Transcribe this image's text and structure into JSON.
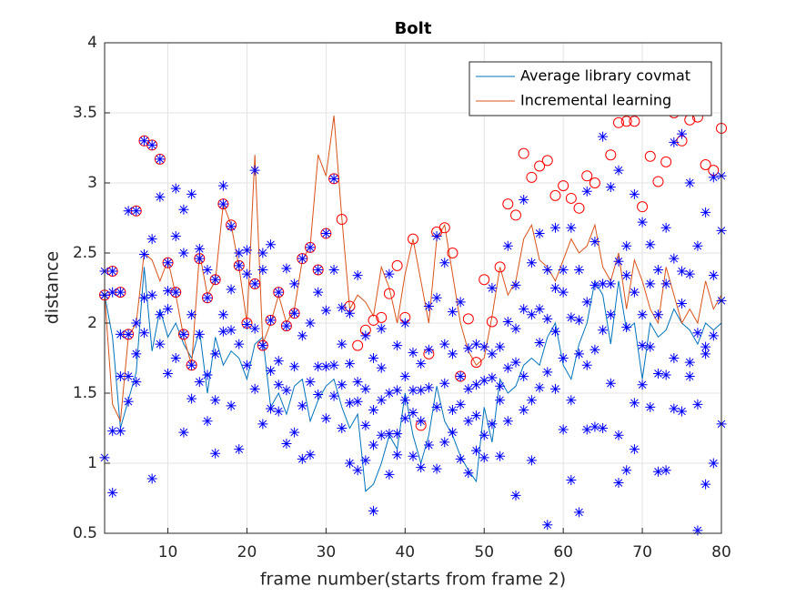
{
  "chart_data": {
    "type": "line",
    "title": "Bolt",
    "xlabel": "frame number(starts from frame 2)",
    "ylabel": "distance",
    "x": [
      2,
      3,
      4,
      5,
      6,
      7,
      8,
      9,
      10,
      11,
      12,
      13,
      14,
      15,
      16,
      17,
      18,
      19,
      20,
      21,
      22,
      23,
      24,
      25,
      26,
      27,
      28,
      29,
      30,
      31,
      32,
      33,
      34,
      35,
      36,
      37,
      38,
      39,
      40,
      41,
      42,
      43,
      44,
      45,
      46,
      47,
      48,
      49,
      50,
      51,
      52,
      53,
      54,
      55,
      56,
      57,
      58,
      59,
      60,
      61,
      62,
      63,
      64,
      65,
      66,
      67,
      68,
      69,
      70,
      71,
      72,
      73,
      74,
      75,
      76,
      77,
      78,
      79,
      80
    ],
    "xlim": [
      2,
      80
    ],
    "xticks": [
      10,
      20,
      30,
      40,
      50,
      60,
      70,
      80
    ],
    "ylim": [
      0.5,
      4
    ],
    "yticks": [
      0.5,
      1,
      1.5,
      2,
      2.5,
      3,
      3.5,
      4
    ],
    "grid": true,
    "legend": "northeast",
    "series": [
      {
        "name": "Average library covmat",
        "color": "#0072bd",
        "values": [
          2.2,
          1.9,
          1.25,
          1.45,
          1.65,
          2.4,
          1.8,
          2.1,
          1.9,
          2.0,
          1.85,
          1.75,
          1.95,
          1.5,
          1.9,
          1.7,
          1.8,
          1.75,
          1.6,
          1.85,
          1.9,
          1.4,
          1.5,
          1.35,
          1.55,
          1.6,
          1.3,
          1.45,
          1.55,
          1.6,
          1.4,
          1.25,
          1.35,
          0.8,
          0.85,
          1.0,
          1.2,
          1.1,
          1.5,
          1.2,
          1.0,
          1.2,
          1.55,
          1.3,
          1.2,
          1.05,
          0.95,
          0.87,
          1.4,
          1.15,
          1.6,
          1.5,
          1.55,
          1.7,
          1.75,
          1.7,
          1.9,
          2.0,
          1.7,
          1.6,
          1.85,
          2.0,
          2.3,
          2.2,
          1.85,
          2.3,
          1.95,
          2.0,
          1.6,
          2.0,
          1.9,
          1.95,
          2.1,
          2.0,
          1.95,
          1.85,
          2.0,
          1.95,
          2.0
        ]
      },
      {
        "name": "Incremental learning",
        "color": "#d95319",
        "values": [
          2.2,
          1.42,
          1.3,
          1.9,
          2.0,
          2.5,
          2.45,
          2.3,
          2.45,
          2.2,
          1.9,
          1.7,
          2.5,
          2.2,
          2.3,
          2.85,
          2.7,
          2.4,
          2.0,
          3.2,
          1.85,
          2.0,
          2.2,
          2.0,
          2.1,
          2.45,
          2.55,
          3.2,
          3.05,
          3.48,
          2.75,
          2.1,
          2.2,
          2.15,
          2.05,
          2.4,
          2.25,
          2.0,
          2.35,
          2.6,
          2.3,
          2.0,
          2.6,
          2.7,
          2.35,
          2.0,
          1.8,
          1.7,
          1.75,
          2.05,
          2.4,
          2.2,
          2.3,
          2.6,
          2.7,
          2.45,
          2.4,
          2.3,
          2.45,
          2.6,
          2.5,
          2.55,
          2.7,
          2.4,
          2.3,
          2.5,
          2.1,
          2.45,
          2.3,
          2.1,
          2.0,
          2.4,
          2.2,
          2.0,
          2.1,
          2.0,
          2.3,
          2.1,
          2.2
        ]
      }
    ],
    "circles": {
      "color": "#ff0000",
      "values": [
        2.2,
        2.37,
        2.22,
        1.92,
        2.8,
        3.3,
        3.27,
        3.17,
        2.43,
        2.22,
        1.92,
        1.7,
        2.46,
        2.18,
        2.31,
        2.85,
        2.7,
        2.41,
        2.0,
        2.28,
        1.84,
        2.02,
        2.22,
        1.98,
        2.07,
        2.46,
        2.54,
        2.38,
        2.64,
        3.03,
        2.74,
        2.12,
        1.84,
        1.95,
        2.02,
        2.04,
        2.21,
        2.41,
        2.04,
        2.6,
        1.27,
        1.78,
        2.65,
        2.68,
        2.5,
        1.62,
        2.03,
        1.72,
        2.31,
        2.01,
        2.4,
        2.85,
        2.77,
        3.21,
        3.04,
        3.12,
        3.16,
        2.91,
        2.98,
        2.89,
        2.82,
        3.05,
        3.0,
        3.55,
        3.2,
        3.43,
        3.44,
        3.44,
        2.83,
        3.19,
        3.01,
        3.15,
        3.5,
        3.3,
        3.45,
        3.47,
        3.13,
        3.09,
        3.39
      ]
    },
    "stars": {
      "color": "#0000ff",
      "values": [
        [
          2.2,
          1.04,
          2.37,
          2.2
        ],
        [
          1.23,
          2.37,
          0.79,
          2.22
        ],
        [
          1.23,
          2.22,
          1.62,
          1.92
        ],
        [
          1.44,
          1.92,
          2.8,
          1.62
        ],
        [
          1.78,
          2.8,
          2.0,
          1.58
        ],
        [
          2.49,
          3.3,
          1.93,
          2.18
        ],
        [
          0.89,
          3.27,
          2.6,
          2.2
        ],
        [
          2.9,
          3.17,
          2.06,
          1.85
        ],
        [
          1.64,
          2.43,
          2.23,
          2.1
        ],
        [
          2.96,
          2.22,
          2.62,
          1.75
        ],
        [
          1.22,
          1.92,
          2.81,
          2.5
        ],
        [
          2.92,
          1.7,
          1.46,
          2.06
        ],
        [
          1.58,
          2.46,
          2.53,
          1.92
        ],
        [
          1.3,
          2.18,
          1.63,
          2.38
        ],
        [
          1.07,
          2.31,
          1.78,
          1.45
        ],
        [
          2.98,
          2.85,
          2.06,
          1.94
        ],
        [
          2.69,
          1.41,
          1.95,
          2.24
        ],
        [
          1.1,
          2.41,
          2.5,
          1.85
        ],
        [
          2.52,
          1.99,
          1.7,
          2.35
        ],
        [
          3.09,
          2.28,
          1.96,
          1.53
        ],
        [
          1.84,
          2.5,
          1.28,
          2.38
        ],
        [
          1.39,
          2.02,
          2.56,
          1.66
        ],
        [
          1.73,
          2.22,
          1.37,
          1.56
        ],
        [
          1.14,
          1.98,
          2.39,
          1.52
        ],
        [
          1.69,
          2.07,
          1.22,
          2.28
        ],
        [
          1.41,
          2.46,
          1.91,
          1.03
        ],
        [
          2.54,
          1.06,
          1.58,
          2.0
        ],
        [
          1.49,
          2.38,
          2.22,
          1.69
        ],
        [
          1.69,
          2.64,
          1.32,
          2.09
        ],
        [
          3.03,
          2.38,
          1.7,
          1.48
        ],
        [
          2.11,
          1.85,
          1.25,
          1.56
        ],
        [
          1.71,
          1.43,
          2.07,
          1.0
        ],
        [
          2.34,
          1.44,
          1.58,
          0.95
        ],
        [
          1.53,
          1.27,
          1.02,
          1.91
        ],
        [
          0.66,
          1.38,
          1.75,
          1.13
        ],
        [
          1.2,
          1.68,
          1.45,
          1.96
        ],
        [
          1.5,
          0.92,
          1.21,
          2.35
        ],
        [
          1.84,
          1.52,
          1.21,
          1.06
        ],
        [
          2.0,
          1.62,
          1.32,
          1.45
        ],
        [
          1.36,
          1.79,
          1.05,
          1.52
        ],
        [
          0.97,
          1.52,
          1.71,
          1.3
        ],
        [
          1.13,
          2.12,
          1.54,
          1.81
        ],
        [
          2.62,
          1.4,
          0.96,
          2.18
        ],
        [
          2.43,
          1.15,
          1.85,
          1.57
        ],
        [
          1.22,
          1.78,
          2.08,
          1.38
        ],
        [
          1.62,
          1.42,
          1.03,
          2.15
        ],
        [
          1.3,
          1.82,
          0.93,
          1.53
        ],
        [
          1.56,
          1.09,
          1.34,
          1.85
        ],
        [
          1.83,
          1.59,
          1.2,
          1.04
        ],
        [
          1.61,
          1.28,
          2.25,
          1.78
        ],
        [
          1.83,
          1.55,
          1.05,
          1.45
        ],
        [
          2.55,
          1.68,
          2.01,
          1.3
        ],
        [
          1.72,
          1.96,
          0.77,
          2.27
        ],
        [
          2.88,
          1.62,
          2.1,
          1.38
        ],
        [
          2.06,
          1.45,
          2.43,
          1.02
        ],
        [
          2.1,
          1.54,
          2.64,
          1.86
        ],
        [
          0.56,
          2.38,
          1.65,
          2.03
        ],
        [
          1.53,
          2.68,
          1.94,
          2.25
        ],
        [
          1.24,
          2.22,
          2.38,
          1.75
        ],
        [
          0.88,
          2.68,
          1.45,
          2.04
        ],
        [
          0.65,
          2.02,
          2.38,
          1.78
        ],
        [
          1.7,
          2.94,
          2.15,
          1.24
        ],
        [
          1.26,
          2.27,
          2.58,
          1.81
        ],
        [
          3.33,
          2.28,
          1.95,
          1.25
        ],
        [
          2.97,
          2.28,
          1.57,
          2.06
        ],
        [
          1.2,
          3.09,
          2.44,
          0.86
        ],
        [
          0.95,
          2.55,
          1.97,
          2.34
        ],
        [
          1.1,
          2.92,
          2.22,
          1.43
        ],
        [
          1.56,
          2.06,
          1.84,
          2.72
        ],
        [
          1.4,
          2.56,
          1.83,
          2.28
        ],
        [
          0.94,
          2.06,
          1.64,
          2.38
        ],
        [
          0.95,
          2.68,
          1.63,
          2.28
        ],
        [
          3.29,
          1.39,
          2.46,
          1.75
        ],
        [
          1.37,
          3.35,
          2.37,
          2.14
        ],
        [
          3.0,
          1.72,
          2.35,
          1.62
        ],
        [
          0.52,
          2.55,
          1.42,
          1.93
        ],
        [
          0.85,
          2.79,
          1.78,
          1.83
        ],
        [
          1.0,
          3.04,
          2.34,
          1.91
        ],
        [
          1.28,
          2.66,
          2.16,
          3.05
        ]
      ]
    }
  }
}
